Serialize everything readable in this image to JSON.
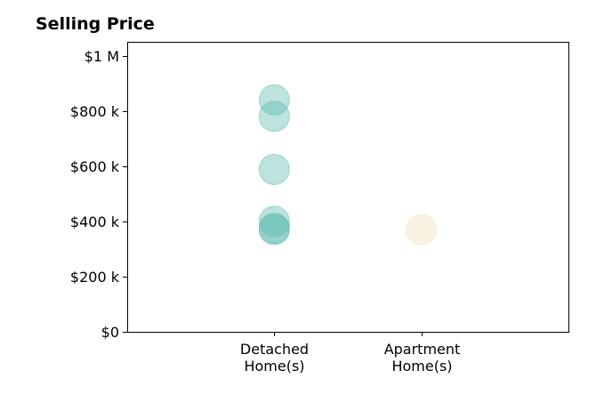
{
  "chart_data": {
    "type": "scatter",
    "title": "Selling Price",
    "xlabel": "",
    "ylabel": "",
    "categories": [
      "Detached\nHome(s)",
      "Apartment\nHome(s)"
    ],
    "x_range": [
      -1,
      2
    ],
    "ylim": [
      0,
      1050000
    ],
    "y_ticks": [
      0,
      200000,
      400000,
      600000,
      800000,
      1000000
    ],
    "y_tick_labels": [
      "$0",
      "$200 k",
      "$400 k",
      "$600 k",
      "$800 k",
      "$1 M"
    ],
    "grid": false,
    "legend": "none",
    "series": [
      {
        "category": "Detached\nHome(s)",
        "color": "#5bb8ad",
        "values": [
          840000,
          780000,
          588000,
          400000,
          375000,
          370000
        ]
      },
      {
        "category": "Apartment\nHome(s)",
        "color": "#f3deb1",
        "values": [
          370000
        ]
      }
    ]
  }
}
